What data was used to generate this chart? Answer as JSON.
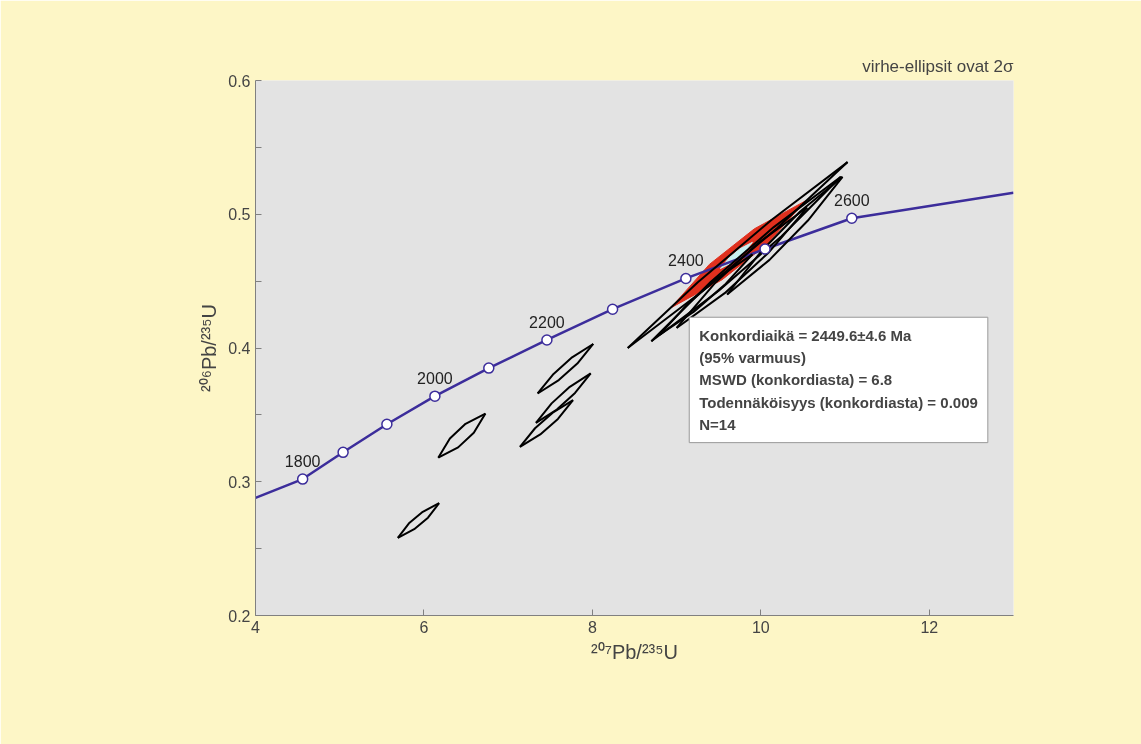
{
  "chart_data": {
    "type": "line",
    "title": "virhe-ellipsit ovat 2σ",
    "xlabel": "²⁰⁷Pb/²³⁵U",
    "ylabel": "²⁰⁶Pb/²³⁵U",
    "xlim": [
      4,
      13
    ],
    "ylim": [
      0.2,
      0.6
    ],
    "xticks": [
      4,
      6,
      8,
      10,
      12
    ],
    "yticks": [
      0.2,
      {
        "value": 0.25,
        "label": null
      },
      0.3,
      {
        "value": 0.35,
        "label": null
      },
      0.4,
      {
        "value": 0.45,
        "label": null
      },
      0.5,
      {
        "value": 0.55,
        "label": null
      },
      0.6
    ],
    "series": [
      {
        "color": "#3c2d9b",
        "x": [
          4,
          4.56,
          5.04,
          5.56,
          6.13,
          6.77,
          7.46,
          8.24,
          9.11,
          10.05,
          11.08,
          13
        ],
        "values": [
          0.288,
          0.302,
          0.322,
          0.343,
          0.364,
          0.385,
          0.406,
          0.429,
          0.452,
          0.474,
          0.497,
          0.516
        ]
      },
      {
        "type": "line",
        "color": "#000000",
        "x": [
          5.69,
          5.884,
          6.048,
          6.18
        ],
        "values": [
          0.258,
          0.2645,
          0.2731,
          0.284
        ]
      },
      {
        "type": "line",
        "color": "#000000",
        "x": [
          5.69,
          5.822,
          5.986,
          6.18
        ],
        "values": [
          0.258,
          0.2689,
          0.2775,
          0.284
        ]
      },
      {
        "type": "line",
        "color": "#000000",
        "x": [
          6.17,
          6.406,
          6.592,
          6.73
        ],
        "values": [
          0.318,
          0.3257,
          0.3367,
          0.351
        ]
      },
      {
        "type": "line",
        "color": "#000000",
        "x": [
          6.17,
          6.308,
          6.494,
          6.73
        ],
        "values": [
          0.318,
          0.3323,
          0.3433,
          0.351
        ]
      },
      {
        "type": "line",
        "color": "#000000",
        "x": [
          7.14,
          7.381,
          7.591,
          7.77
        ],
        "values": [
          0.326,
          0.3354,
          0.347,
          0.361
        ]
      },
      {
        "type": "line",
        "color": "#000000",
        "x": [
          7.14,
          7.319,
          7.529,
          7.77
        ],
        "values": [
          0.326,
          0.34,
          0.3516,
          0.361
        ]
      },
      {
        "type": "line",
        "color": "#000000",
        "x": [
          7.33,
          7.578,
          7.794,
          7.98
        ],
        "values": [
          0.344,
          0.354,
          0.3664,
          0.381
        ]
      },
      {
        "type": "line",
        "color": "#000000",
        "x": [
          7.33,
          7.516,
          7.732,
          7.98
        ],
        "values": [
          0.344,
          0.3586,
          0.371,
          0.381
        ]
      },
      {
        "type": "line",
        "color": "#000000",
        "x": [
          7.35,
          7.601,
          7.821,
          8.01
        ],
        "values": [
          0.366,
          0.376,
          0.3884,
          0.403
        ]
      },
      {
        "type": "line",
        "color": "#000000",
        "x": [
          7.35,
          7.539,
          7.759,
          8.01
        ],
        "values": [
          0.366,
          0.3806,
          0.393,
          0.403
        ]
      },
      {
        "type": "line",
        "color": "#000000",
        "x": [
          8.42,
          9.328,
          10.198,
          11.03
        ],
        "values": [
          0.4,
          0.4435,
          0.4899,
          0.539
        ]
      },
      {
        "type": "line",
        "color": "#000000",
        "x": [
          8.42,
          9.252,
          10.122,
          11.03
        ],
        "values": [
          0.4,
          0.4491,
          0.4955,
          0.539
        ]
      },
      {
        "type": "line",
        "color": "#000000",
        "x": [
          8.7,
          9.496,
          10.246,
          10.95
        ],
        "values": [
          0.405,
          0.4426,
          0.4836,
          0.528
        ]
      },
      {
        "type": "line",
        "color": "#000000",
        "x": [
          8.7,
          9.404,
          10.154,
          10.95
        ],
        "values": [
          0.405,
          0.4494,
          0.4904,
          0.528
        ]
      },
      {
        "type": "line",
        "color": "#000000",
        "x": [
          9.0,
          9.571,
          10.087,
          10.55
        ],
        "values": [
          0.415,
          0.441,
          0.471,
          0.505
        ]
      },
      {
        "type": "line",
        "color": "#000000",
        "x": [
          9.0,
          9.463,
          9.979,
          10.55
        ],
        "values": [
          0.415,
          0.449,
          0.479,
          0.505
        ]
      },
      {
        "type": "line",
        "color": "#000000",
        "x": [
          9.6,
          10.103,
          10.559,
          10.97
        ],
        "values": [
          0.44,
          0.4659,
          0.4953,
          0.528
        ]
      },
      {
        "type": "line",
        "color": "#000000",
        "x": [
          9.6,
          10.011,
          10.467,
          10.97
        ],
        "values": [
          0.44,
          0.4727,
          0.5021,
          0.528
        ]
      },
      {
        "type": "line",
        "color": "#000000",
        "x": [
          8.8,
          9.205,
          9.571,
          9.9
        ],
        "values": [
          0.41,
          0.4272,
          0.4472,
          0.47
        ]
      },
      {
        "type": "line",
        "color": "#000000",
        "x": [
          8.8,
          9.129,
          9.495,
          9.9
        ],
        "values": [
          0.41,
          0.4328,
          0.4528,
          0.47
        ]
      },
      {
        "type": "area",
        "color": "#e0301e",
        "x": [
          8.93,
          9.537,
          10.071,
          10.53,
          9.923,
          9.389,
          8.93
        ],
        "values": [
          0.43,
          0.4509,
          0.4775,
          0.51,
          0.4891,
          0.4625,
          0.43
        ]
      },
      {
        "type": "area",
        "color": "#c8f0f0",
        "x": [
          9.52,
          9.669,
          9.795,
          9.9,
          9.751,
          9.625,
          9.52
        ],
        "values": [
          0.4594,
          0.4642,
          0.4708,
          0.479,
          0.4742,
          0.4676,
          0.4594
        ]
      },
      {
        "type": "scatter",
        "marker": "circle",
        "color": "#3c2d9b",
        "x": [
          4.56,
          5.04,
          5.56,
          6.13,
          6.77,
          7.46,
          8.24,
          9.11,
          10.05,
          11.08
        ],
        "values": [
          0.302,
          0.322,
          0.343,
          0.364,
          0.385,
          0.406,
          0.429,
          0.452,
          0.474,
          0.497
        ]
      }
    ],
    "annotations": [
      {
        "text": "1800",
        "x": 4.56,
        "y": 0.302
      },
      {
        "text": "2000",
        "x": 6.13,
        "y": 0.364
      },
      {
        "text": "2200",
        "x": 7.46,
        "y": 0.406
      },
      {
        "text": "2400",
        "x": 9.11,
        "y": 0.452
      },
      {
        "text": "2600",
        "x": 11.08,
        "y": 0.497
      },
      "Konkordiaikä = 2449.6±4.6 Ma\n(95% varmuus)\nMSWD (konkordiasta) = 6.8\nTodennäköisyys (konkordiasta) = 0.009\nN=14"
    ]
  }
}
